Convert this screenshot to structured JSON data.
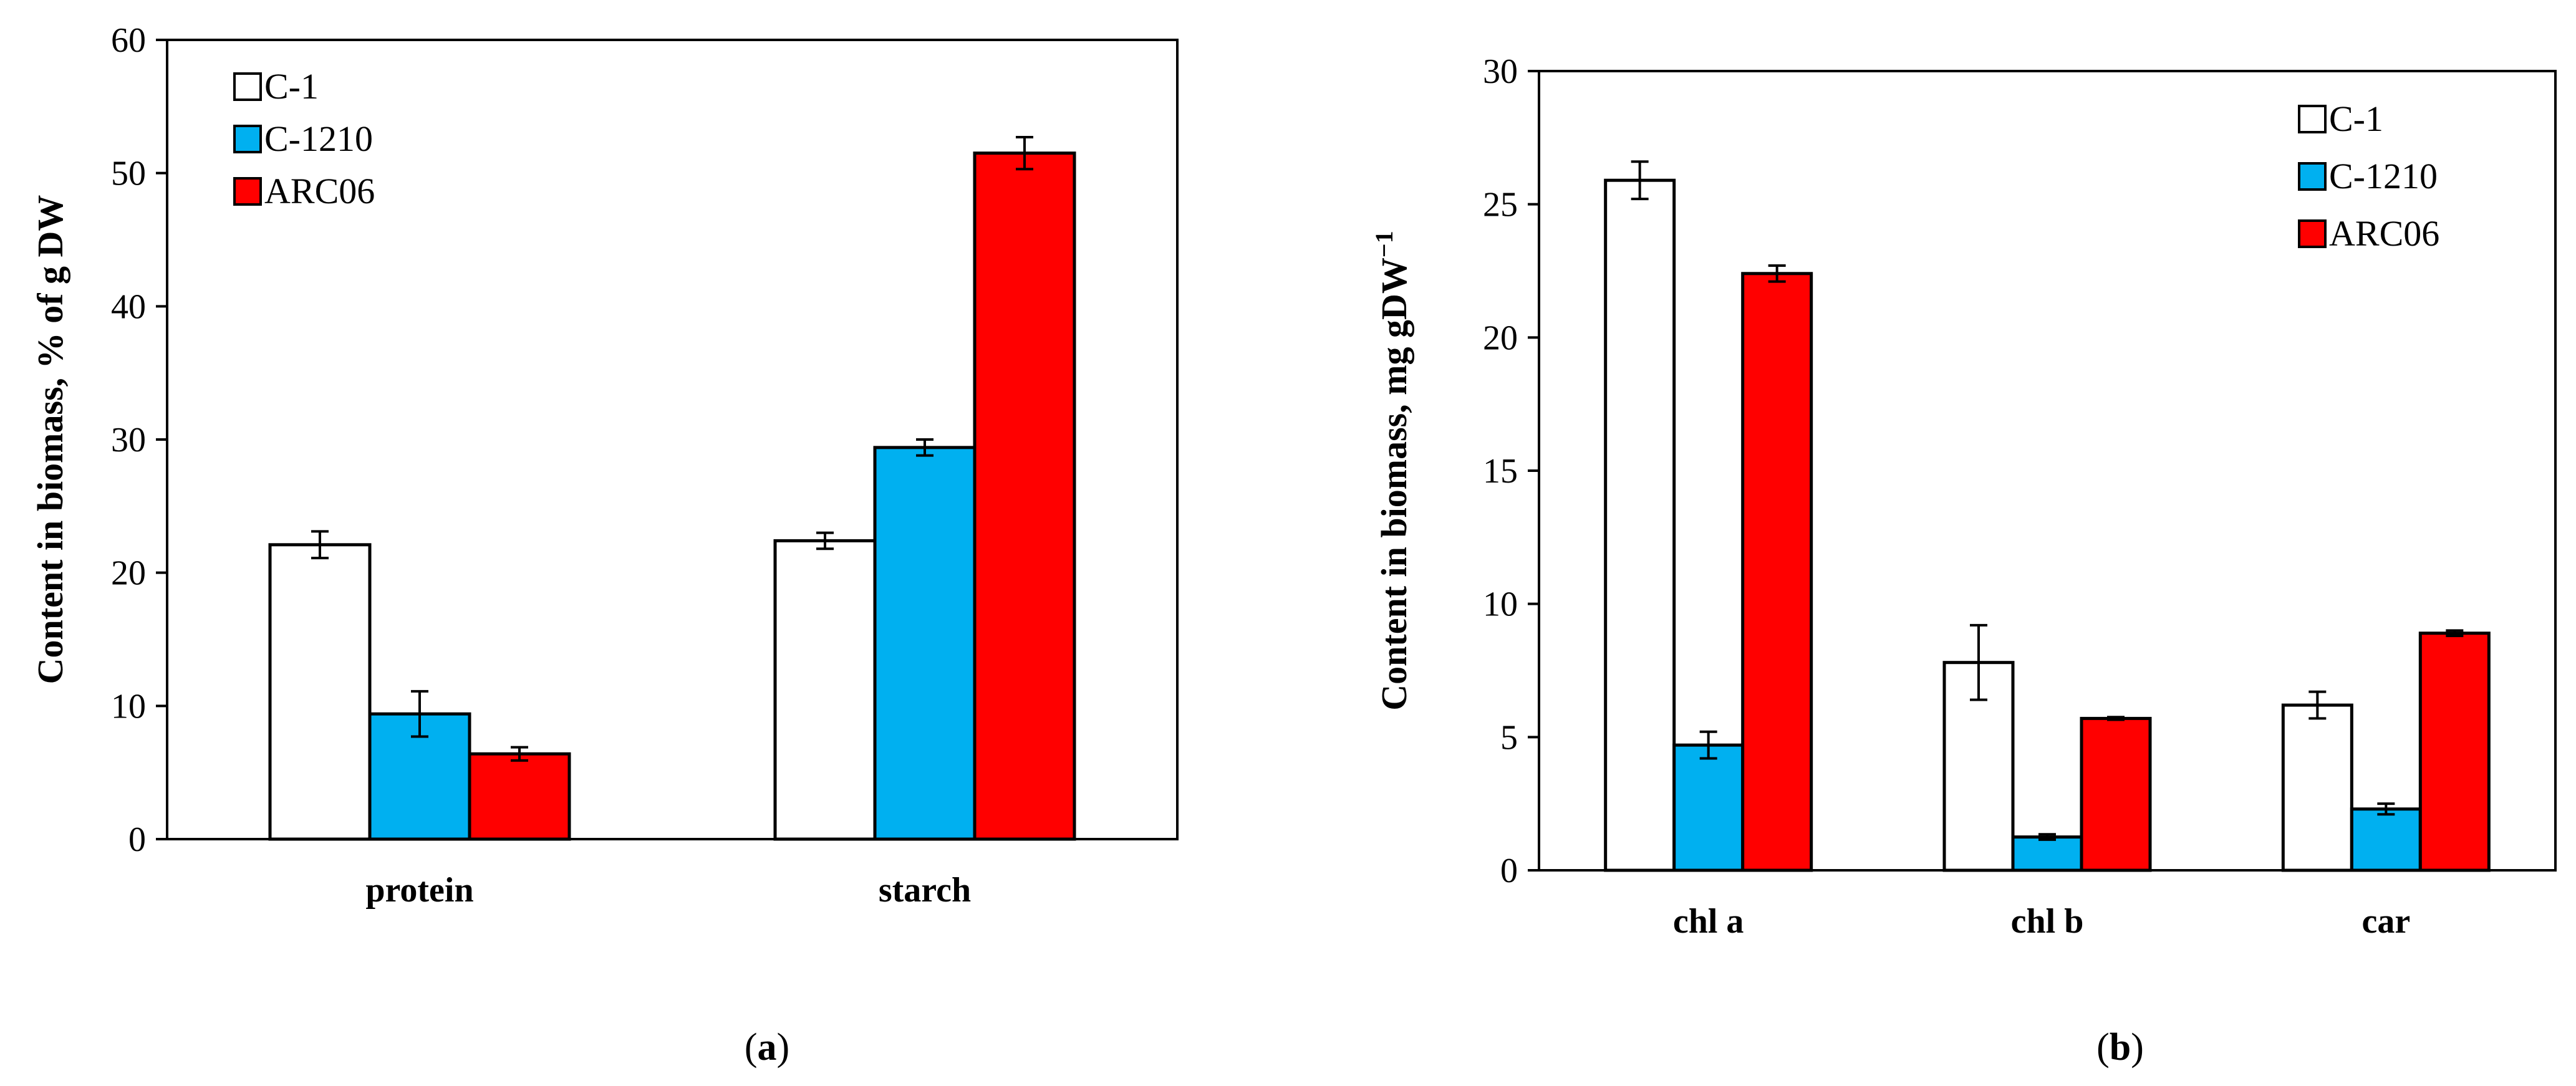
{
  "chart_data": [
    {
      "type": "bar",
      "panel_label": "a",
      "title": "",
      "xlabel": "",
      "ylabel": "Content in biomass,  % of g DW",
      "ylim": [
        0,
        60
      ],
      "yticks": [
        0,
        10,
        20,
        30,
        40,
        50,
        60
      ],
      "grid": false,
      "legend_position": "top-left",
      "categories": [
        "protein",
        "starch"
      ],
      "series": [
        {
          "name": "C-1",
          "color": "#ffffff",
          "values": [
            22.1,
            22.4
          ],
          "errors": [
            1.0,
            0.6
          ]
        },
        {
          "name": "C-1210",
          "color": "#00b0f0",
          "values": [
            9.4,
            29.4
          ],
          "errors": [
            1.7,
            0.6
          ]
        },
        {
          "name": "ARC06",
          "color": "#ff0000",
          "values": [
            6.4,
            51.5
          ],
          "errors": [
            0.5,
            1.2
          ]
        }
      ]
    },
    {
      "type": "bar",
      "panel_label": "b",
      "title": "",
      "xlabel": "",
      "ylabel": "Content in biomass, mg gDW",
      "ylabel_sup": "−1",
      "ylim": [
        0,
        30
      ],
      "yticks": [
        0,
        5,
        10,
        15,
        20,
        25,
        30
      ],
      "grid": false,
      "legend_position": "top-right",
      "categories": [
        "chl a",
        "chl b",
        "car"
      ],
      "series": [
        {
          "name": "C-1",
          "color": "#ffffff",
          "values": [
            25.9,
            7.8,
            6.2
          ],
          "errors": [
            0.7,
            1.4,
            0.5
          ]
        },
        {
          "name": "C-1210",
          "color": "#00b0f0",
          "values": [
            4.7,
            1.25,
            2.3
          ],
          "errors": [
            0.5,
            0.1,
            0.2
          ]
        },
        {
          "name": "ARC06",
          "color": "#ff0000",
          "values": [
            22.4,
            5.7,
            8.9
          ],
          "errors": [
            0.3,
            0.05,
            0.1
          ]
        }
      ]
    }
  ]
}
